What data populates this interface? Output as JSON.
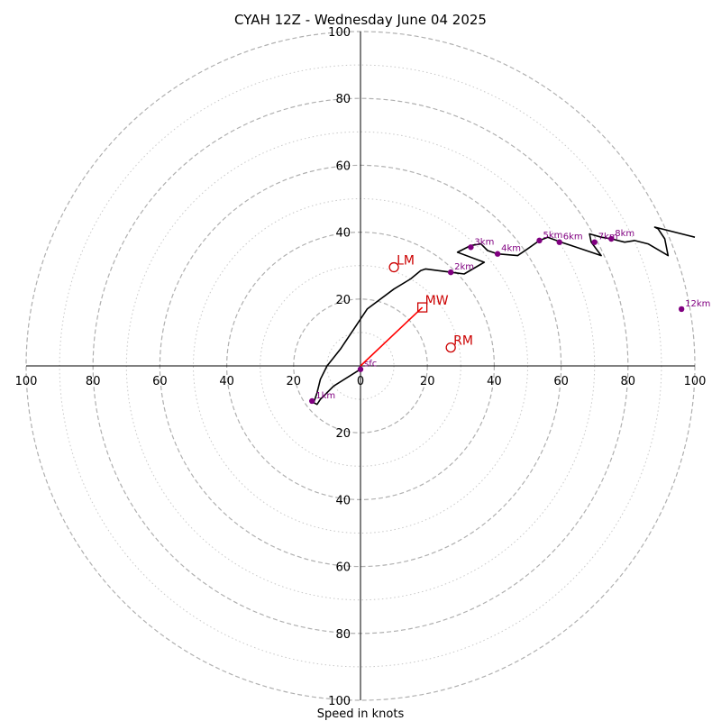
{
  "chart_data": {
    "type": "scatter",
    "subtype": "hodograph",
    "title": "CYAH 12Z - Wednesday June 04 2025",
    "xlabel": "Speed in knots",
    "xlim": [
      -100,
      100
    ],
    "ylim": [
      -100,
      100
    ],
    "major_rings": [
      20,
      40,
      60,
      80,
      100
    ],
    "minor_rings": [
      10,
      30,
      50,
      70,
      90
    ],
    "x_tick_labels": [
      "100",
      "80",
      "60",
      "40",
      "20",
      "0",
      "20",
      "40",
      "60",
      "80",
      "100"
    ],
    "x_tick_values": [
      -100,
      -80,
      -60,
      -40,
      -20,
      0,
      20,
      40,
      60,
      80,
      100
    ],
    "y_tick_labels_top": [
      "20",
      "40",
      "60",
      "80",
      "100"
    ],
    "y_tick_values_top": [
      20,
      40,
      60,
      80,
      100
    ],
    "y_tick_labels_bottom": [
      "20",
      "40",
      "60",
      "80",
      "100"
    ],
    "y_tick_values_bottom": [
      -20,
      -40,
      -60,
      -80,
      -100
    ],
    "grid": true,
    "trace": [
      [
        0,
        -1
      ],
      [
        -8,
        -6
      ],
      [
        -12,
        -10
      ],
      [
        -13,
        -11.5
      ],
      [
        -14,
        -11
      ],
      [
        -13,
        -8
      ],
      [
        -12,
        -4
      ],
      [
        -10,
        0
      ],
      [
        -6,
        5
      ],
      [
        -2,
        11
      ],
      [
        2,
        17
      ],
      [
        10,
        23
      ],
      [
        15,
        26
      ],
      [
        18,
        28.5
      ],
      [
        19.5,
        29
      ],
      [
        27,
        28
      ],
      [
        31,
        27.5
      ],
      [
        37,
        31
      ],
      [
        29,
        34
      ],
      [
        33,
        36
      ],
      [
        36,
        36.5
      ],
      [
        38,
        34.5
      ],
      [
        41,
        33.5
      ],
      [
        47,
        33
      ],
      [
        50,
        35
      ],
      [
        53.5,
        37.5
      ],
      [
        56,
        38.5
      ],
      [
        60,
        37
      ],
      [
        66,
        35
      ],
      [
        72,
        33
      ],
      [
        69,
        37
      ],
      [
        68.5,
        39.5
      ],
      [
        72,
        38.5
      ],
      [
        75,
        38
      ],
      [
        79,
        37
      ],
      [
        82,
        37.5
      ],
      [
        86,
        36.5
      ],
      [
        92,
        33
      ],
      [
        91,
        38
      ],
      [
        89,
        41
      ],
      [
        88,
        41.5
      ],
      [
        100,
        38.5
      ]
    ],
    "height_markers": [
      {
        "label": "sfc",
        "u": 0,
        "v": -1
      },
      {
        "label": "1km",
        "u": -14.5,
        "v": -10.5
      },
      {
        "label": "2km",
        "u": 27,
        "v": 28
      },
      {
        "label": "3km",
        "u": 33,
        "v": 35.5
      },
      {
        "label": "4km",
        "u": 41,
        "v": 33.5
      },
      {
        "label": "5km",
        "u": 53.5,
        "v": 37.5
      },
      {
        "label": "6km",
        "u": 59.5,
        "v": 37
      },
      {
        "label": "7km",
        "u": 70,
        "v": 37
      },
      {
        "label": "8km",
        "u": 75,
        "v": 38
      },
      {
        "label": "12km",
        "u": 96,
        "v": 17
      }
    ],
    "storm_motions": [
      {
        "label": "LM",
        "u": 10,
        "v": 29.5,
        "shape": "circle"
      },
      {
        "label": "MW",
        "u": 18.5,
        "v": 17.5,
        "shape": "square"
      },
      {
        "label": "RM",
        "u": 27,
        "v": 5.5,
        "shape": "circle"
      }
    ],
    "shear_vector": {
      "from": [
        0,
        0
      ],
      "to": [
        18.5,
        17.5
      ]
    },
    "colors": {
      "trace": "#000000",
      "height_marker": "#800080",
      "storm_motion": "#cc0000",
      "shear_vector": "#ff0000",
      "major_ring": "#b0b0b0",
      "minor_ring": "#c8c8c8",
      "axes": "#000000"
    }
  }
}
